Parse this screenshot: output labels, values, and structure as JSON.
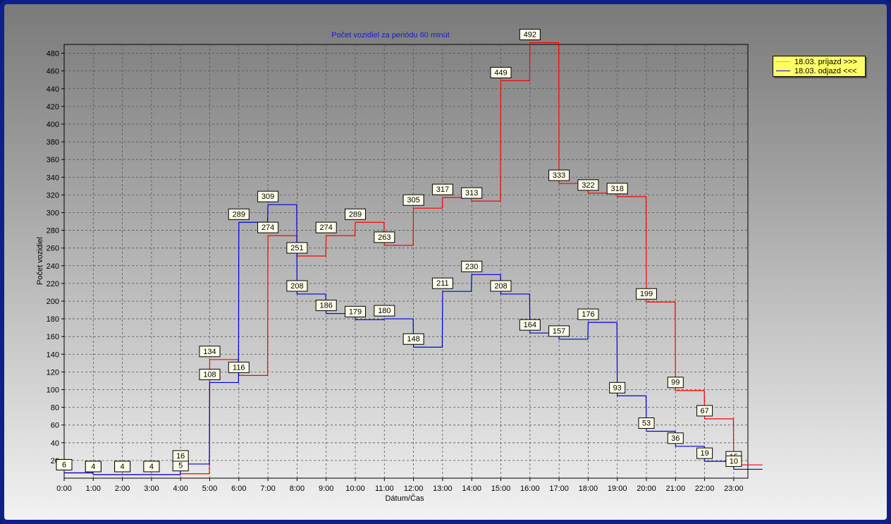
{
  "chart_data": {
    "type": "line",
    "step": true,
    "title": "Počet vozidiel za periódu 60 minút",
    "xlabel": "Dátum/Čas",
    "ylabel": "Počet vozidiel",
    "ylim": [
      0,
      490
    ],
    "yticks": [
      20,
      40,
      60,
      80,
      100,
      120,
      140,
      160,
      180,
      200,
      220,
      240,
      260,
      280,
      300,
      320,
      340,
      360,
      380,
      400,
      420,
      440,
      460,
      480
    ],
    "categories": [
      "0:00",
      "1:00",
      "2:00",
      "3:00",
      "4:00",
      "5:00",
      "6:00",
      "7:00",
      "8:00",
      "9:00",
      "10:00",
      "11:00",
      "12:00",
      "13:00",
      "14:00",
      "15:00",
      "16:00",
      "17:00",
      "18:00",
      "19:00",
      "20:00",
      "21:00",
      "22:00",
      "23:00"
    ],
    "grid": true,
    "legend_position": "top-right",
    "series": [
      {
        "name": "18.03.  príjazd >>>",
        "color": "#ff0000",
        "legend_color": "#e0c000",
        "values": [
          6,
          4,
          4,
          4,
          5,
          134,
          116,
          274,
          251,
          274,
          289,
          263,
          305,
          317,
          313,
          449,
          492,
          333,
          322,
          318,
          199,
          99,
          67,
          15
        ]
      },
      {
        "name": "18.03.  odjazd <<<",
        "color": "#0000e0",
        "legend_color": "#0000e0",
        "values": [
          6,
          4,
          4,
          4,
          16,
          108,
          289,
          309,
          208,
          186,
          179,
          180,
          148,
          211,
          230,
          208,
          164,
          157,
          176,
          93,
          53,
          36,
          19,
          10
        ]
      }
    ]
  }
}
